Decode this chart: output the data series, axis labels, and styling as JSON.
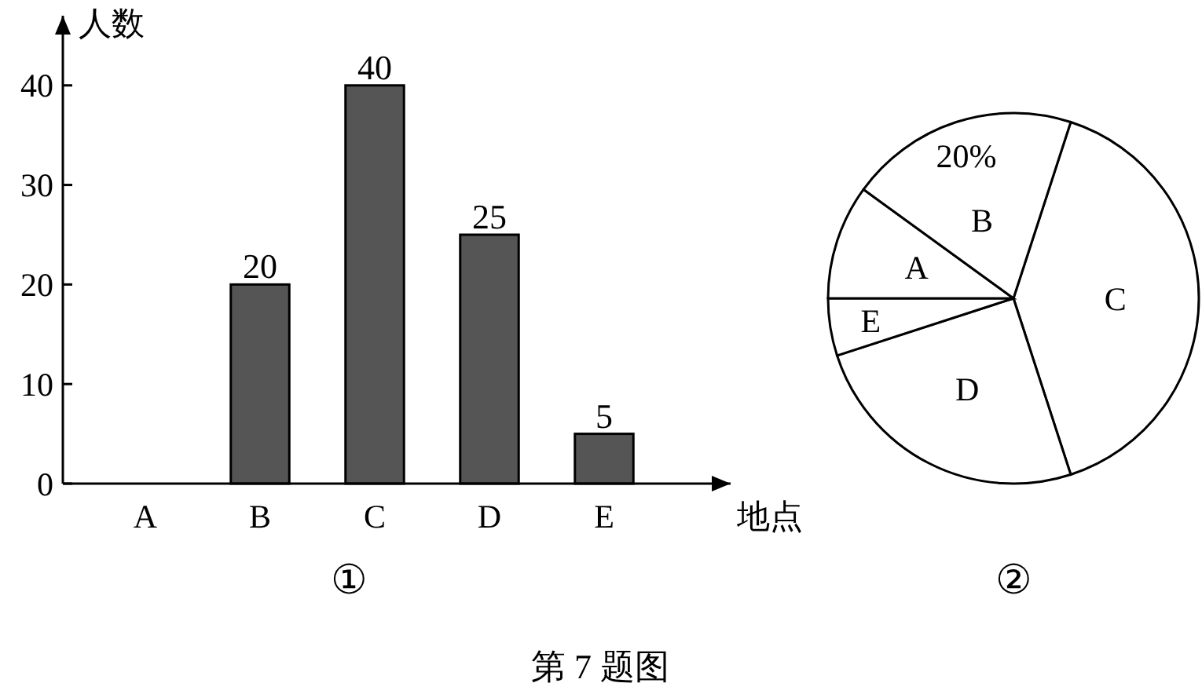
{
  "chart_data": [
    {
      "type": "bar",
      "xlabel": "地点",
      "ylabel": "人数",
      "categories": [
        "A",
        "B",
        "C",
        "D",
        "E"
      ],
      "values": [
        null,
        20,
        40,
        25,
        5
      ],
      "color": "#555555",
      "ylim": [
        0,
        47
      ],
      "yticks": [
        0,
        10,
        20,
        30,
        40
      ],
      "data_labels": true,
      "grid": false,
      "annotations": [
        "①",
        "第 7 题图"
      ]
    },
    {
      "type": "pie",
      "categories": [
        "C",
        "D",
        "E",
        "A",
        "B"
      ],
      "values": [
        40,
        25,
        5,
        10,
        20
      ],
      "colors": [
        "#ffffff",
        "#ffffff",
        "#ffffff",
        "#ffffff",
        "#ffffff"
      ],
      "value_labels": [
        null,
        null,
        null,
        null,
        "20%"
      ],
      "annotations": [
        "②"
      ]
    }
  ]
}
